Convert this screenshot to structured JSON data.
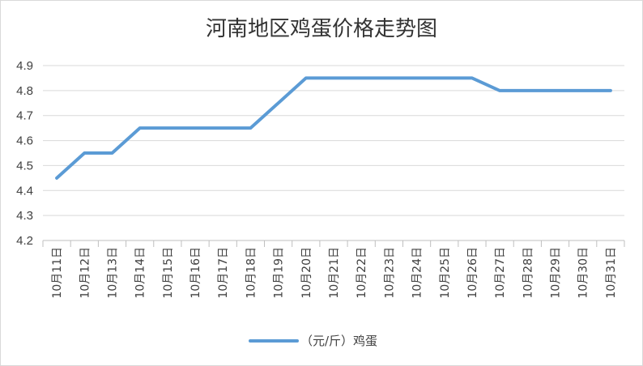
{
  "chart_data": {
    "type": "line",
    "title": "河南地区鸡蛋价格走势图",
    "categories": [
      "10月11日",
      "10月12日",
      "10月13日",
      "10月14日",
      "10月15日",
      "10月16日",
      "10月17日",
      "10月18日",
      "10月19日",
      "10月20日",
      "10月21日",
      "10月22日",
      "10月23日",
      "10月24日",
      "10月25日",
      "10月26日",
      "10月27日",
      "10月28日",
      "10月29日",
      "10月30日",
      "10月31日"
    ],
    "series": [
      {
        "name": "（元/斤）鸡蛋",
        "color": "#5b9bd5",
        "values": [
          4.45,
          4.55,
          4.55,
          4.65,
          4.65,
          4.65,
          4.65,
          4.65,
          4.75,
          4.85,
          4.85,
          4.85,
          4.85,
          4.85,
          4.85,
          4.85,
          4.8,
          4.8,
          4.8,
          4.8,
          4.8
        ]
      }
    ],
    "yticks": [
      "4.2",
      "4.3",
      "4.4",
      "4.5",
      "4.6",
      "4.7",
      "4.8",
      "4.9"
    ],
    "ylim": [
      4.2,
      4.9
    ],
    "grid": true,
    "legend": "bottom-center"
  }
}
